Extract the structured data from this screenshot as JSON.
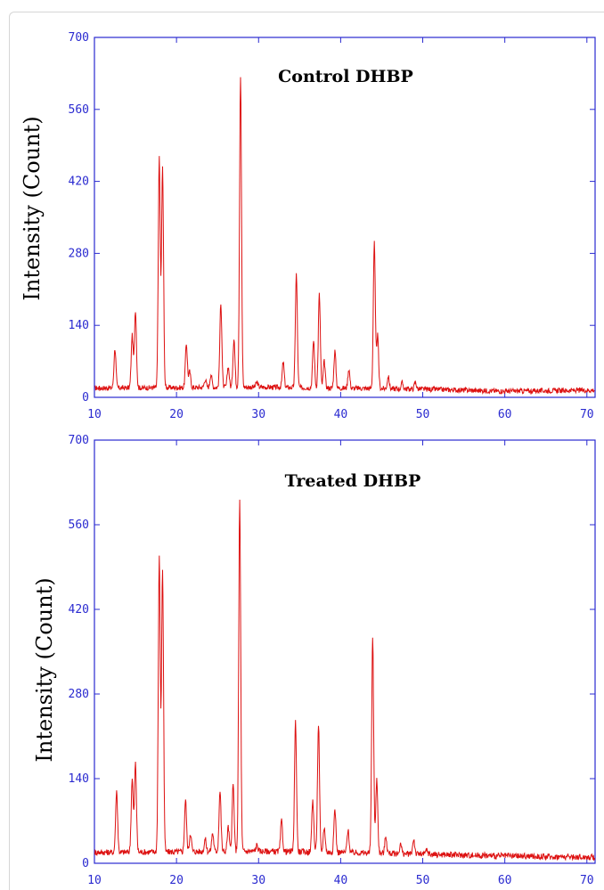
{
  "chart_data": [
    {
      "type": "line",
      "title": "Control DHBP",
      "ylabel": "Intensity (Count)",
      "xlabel": "",
      "xlim": [
        10,
        71
      ],
      "ylim": [
        0,
        700
      ],
      "xticks": [
        10,
        20,
        30,
        40,
        50,
        60,
        70
      ],
      "yticks": [
        0,
        140,
        280,
        420,
        560,
        700
      ],
      "grid": false,
      "color": "#dd1111",
      "baseline": [
        [
          10,
          18
        ],
        [
          30,
          20
        ],
        [
          40,
          18
        ],
        [
          50,
          16
        ],
        [
          60,
          12
        ],
        [
          71,
          14
        ]
      ],
      "peaks": [
        {
          "x": 12.5,
          "y": 95
        },
        {
          "x": 14.6,
          "y": 120
        },
        {
          "x": 15.0,
          "y": 170
        },
        {
          "x": 17.9,
          "y": 465
        },
        {
          "x": 18.3,
          "y": 445
        },
        {
          "x": 21.2,
          "y": 105
        },
        {
          "x": 21.6,
          "y": 50
        },
        {
          "x": 23.5,
          "y": 35
        },
        {
          "x": 24.2,
          "y": 45
        },
        {
          "x": 25.4,
          "y": 185
        },
        {
          "x": 26.3,
          "y": 60
        },
        {
          "x": 27.0,
          "y": 115
        },
        {
          "x": 27.8,
          "y": 620
        },
        {
          "x": 29.8,
          "y": 30
        },
        {
          "x": 33.0,
          "y": 68
        },
        {
          "x": 34.6,
          "y": 240
        },
        {
          "x": 36.7,
          "y": 110
        },
        {
          "x": 37.4,
          "y": 200
        },
        {
          "x": 38.0,
          "y": 70
        },
        {
          "x": 39.3,
          "y": 90
        },
        {
          "x": 41.0,
          "y": 55
        },
        {
          "x": 44.1,
          "y": 300
        },
        {
          "x": 44.5,
          "y": 120
        },
        {
          "x": 45.8,
          "y": 40
        },
        {
          "x": 47.5,
          "y": 28
        },
        {
          "x": 49.1,
          "y": 30
        }
      ]
    },
    {
      "type": "line",
      "title": "Treated DHBP",
      "ylabel": "Intensity (Count)",
      "xlabel": "",
      "xlim": [
        10,
        71
      ],
      "ylim": [
        0,
        700
      ],
      "xticks": [
        10,
        20,
        30,
        40,
        50,
        60,
        70
      ],
      "yticks": [
        0,
        140,
        280,
        420,
        560,
        700
      ],
      "grid": false,
      "color": "#dd1111",
      "baseline": [
        [
          10,
          18
        ],
        [
          30,
          20
        ],
        [
          40,
          18
        ],
        [
          50,
          15
        ],
        [
          60,
          12
        ],
        [
          71,
          10
        ]
      ],
      "peaks": [
        {
          "x": 12.7,
          "y": 120
        },
        {
          "x": 14.6,
          "y": 140
        },
        {
          "x": 15.0,
          "y": 165
        },
        {
          "x": 17.9,
          "y": 505
        },
        {
          "x": 18.3,
          "y": 485
        },
        {
          "x": 21.1,
          "y": 105
        },
        {
          "x": 21.7,
          "y": 50
        },
        {
          "x": 23.5,
          "y": 40
        },
        {
          "x": 24.4,
          "y": 50
        },
        {
          "x": 25.3,
          "y": 120
        },
        {
          "x": 26.3,
          "y": 60
        },
        {
          "x": 26.9,
          "y": 130
        },
        {
          "x": 27.7,
          "y": 600
        },
        {
          "x": 29.8,
          "y": 30
        },
        {
          "x": 32.8,
          "y": 70
        },
        {
          "x": 34.5,
          "y": 235
        },
        {
          "x": 36.6,
          "y": 105
        },
        {
          "x": 37.3,
          "y": 230
        },
        {
          "x": 38.0,
          "y": 60
        },
        {
          "x": 39.3,
          "y": 90
        },
        {
          "x": 40.9,
          "y": 55
        },
        {
          "x": 43.9,
          "y": 375
        },
        {
          "x": 44.4,
          "y": 140
        },
        {
          "x": 45.5,
          "y": 45
        },
        {
          "x": 47.3,
          "y": 32
        },
        {
          "x": 48.9,
          "y": 40
        },
        {
          "x": 50.5,
          "y": 22
        }
      ]
    }
  ]
}
